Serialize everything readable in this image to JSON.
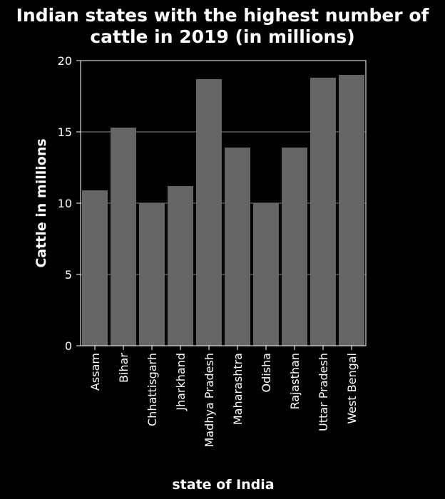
{
  "chart_data": {
    "type": "bar",
    "title_lines": [
      "Indian states with the highest number of",
      "cattle in 2019 (in millions)"
    ],
    "xlabel": "state of India",
    "ylabel": "Cattle in millions",
    "categories": [
      "Assam",
      "Bihar",
      "Chhattisgarh",
      "Jharkhand",
      "Madhya Pradesh",
      "Maharashtra",
      "Odisha",
      "Rajasthan",
      "Uttar Pradesh",
      "West Bengal"
    ],
    "values": [
      10.9,
      15.3,
      10.0,
      11.2,
      18.7,
      13.9,
      10.0,
      13.9,
      18.8,
      19.0
    ],
    "ylim": [
      0,
      20
    ],
    "yticks": [
      "0",
      "5",
      "10",
      "15",
      "20"
    ],
    "grid": true,
    "colors": {
      "background": "#000000",
      "plot_background": "#000000",
      "bar": "#666666",
      "grid": "#8a8a8a",
      "axis": "#ffffff",
      "text": "#ffffff"
    }
  }
}
